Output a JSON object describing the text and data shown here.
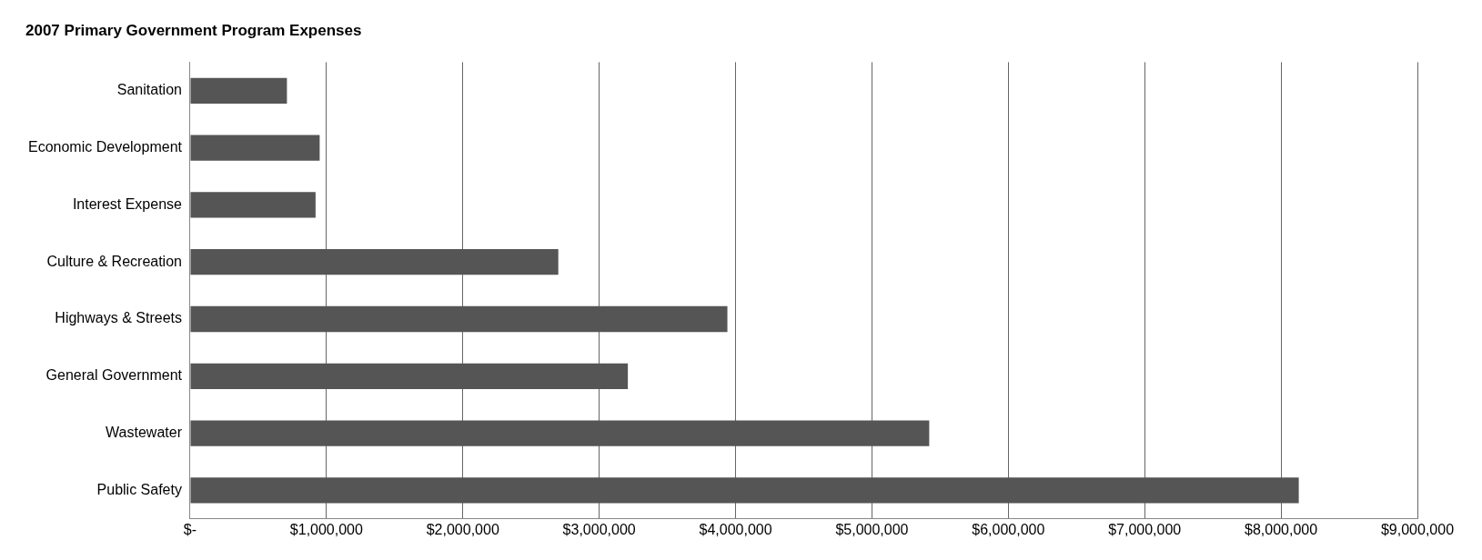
{
  "chart_data": {
    "type": "bar",
    "orientation": "horizontal",
    "title": "2007 Primary Government Program Expenses",
    "categories": [
      "Sanitation",
      "Economic Development",
      "Interest Expense",
      "Culture & Recreation",
      "Highways & Streets",
      "General Government",
      "Wastewater",
      "Public Safety"
    ],
    "values": [
      710000,
      950000,
      920000,
      2700000,
      3940000,
      3210000,
      5420000,
      8130000
    ],
    "color": "#555555",
    "xlim": [
      0,
      9000000
    ],
    "xticks": [
      {
        "value": 0,
        "label": "$-"
      },
      {
        "value": 1000000,
        "label": "$1,000,000"
      },
      {
        "value": 2000000,
        "label": "$2,000,000"
      },
      {
        "value": 3000000,
        "label": "$3,000,000"
      },
      {
        "value": 4000000,
        "label": "$4,000,000"
      },
      {
        "value": 5000000,
        "label": "$5,000,000"
      },
      {
        "value": 6000000,
        "label": "$6,000,000"
      },
      {
        "value": 7000000,
        "label": "$7,000,000"
      },
      {
        "value": 8000000,
        "label": "$8,000,000"
      },
      {
        "value": 9000000,
        "label": "$9,000,000"
      }
    ],
    "grid": "x"
  }
}
